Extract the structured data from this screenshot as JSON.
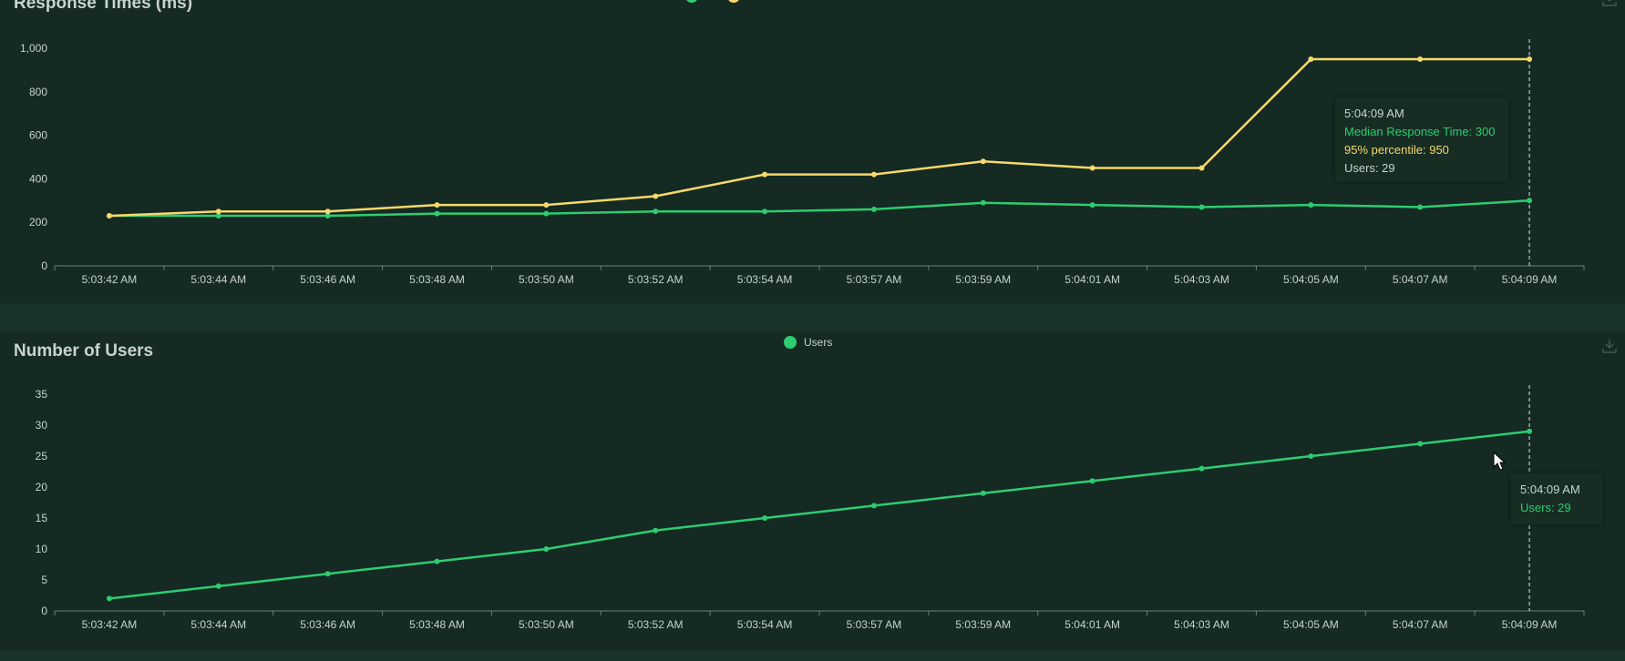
{
  "colors": {
    "median": "#2ecc71",
    "p95": "#f7d86b",
    "users": "#2ecc71",
    "text": "#c9d3ce",
    "axis": "#6b7f76",
    "background": "#142a22"
  },
  "chart_data": [
    {
      "type": "line",
      "title": "Response Times (ms)",
      "categories": [
        "5:03:42 AM",
        "5:03:44 AM",
        "5:03:46 AM",
        "5:03:48 AM",
        "5:03:50 AM",
        "5:03:52 AM",
        "5:03:54 AM",
        "5:03:57 AM",
        "5:03:59 AM",
        "5:04:01 AM",
        "5:04:03 AM",
        "5:04:05 AM",
        "5:04:07 AM",
        "5:04:09 AM"
      ],
      "series": [
        {
          "name": "Median Response Time",
          "color": "#2ecc71",
          "values": [
            230,
            230,
            230,
            240,
            240,
            250,
            250,
            260,
            290,
            280,
            270,
            280,
            270,
            300
          ]
        },
        {
          "name": "95% percentile",
          "color": "#f7d86b",
          "values": [
            230,
            250,
            250,
            280,
            280,
            320,
            420,
            420,
            480,
            450,
            450,
            950,
            950,
            950
          ]
        }
      ],
      "yticks": [
        "0",
        "200",
        "400",
        "600",
        "800",
        "1,000"
      ],
      "ylim": [
        0,
        1000
      ],
      "legend": "top-center",
      "grid": false
    },
    {
      "type": "line",
      "title": "Number of Users",
      "categories": [
        "5:03:42 AM",
        "5:03:44 AM",
        "5:03:46 AM",
        "5:03:48 AM",
        "5:03:50 AM",
        "5:03:52 AM",
        "5:03:54 AM",
        "5:03:57 AM",
        "5:03:59 AM",
        "5:04:01 AM",
        "5:04:03 AM",
        "5:04:05 AM",
        "5:04:07 AM",
        "5:04:09 AM"
      ],
      "series": [
        {
          "name": "Users",
          "color": "#2ecc71",
          "values": [
            2,
            4,
            6,
            8,
            10,
            13,
            15,
            17,
            19,
            21,
            23,
            25,
            27,
            29
          ]
        }
      ],
      "yticks": [
        "0",
        "5",
        "10",
        "15",
        "20",
        "25",
        "30",
        "35"
      ],
      "ylim": [
        0,
        35
      ],
      "legend": "top-center",
      "grid": false
    }
  ],
  "legend1": {
    "median": "",
    "p95": ""
  },
  "legend2": {
    "users": "Users"
  },
  "tooltip1": {
    "time": "5:04:09 AM",
    "median": "Median Response Time: 300",
    "p95": "95% percentile: 950",
    "users": "Users: 29"
  },
  "tooltip2": {
    "time": "5:04:09 AM",
    "users": "Users: 29"
  },
  "icons": {
    "download": "download-icon",
    "cursor": "mouse-pointer-icon"
  }
}
